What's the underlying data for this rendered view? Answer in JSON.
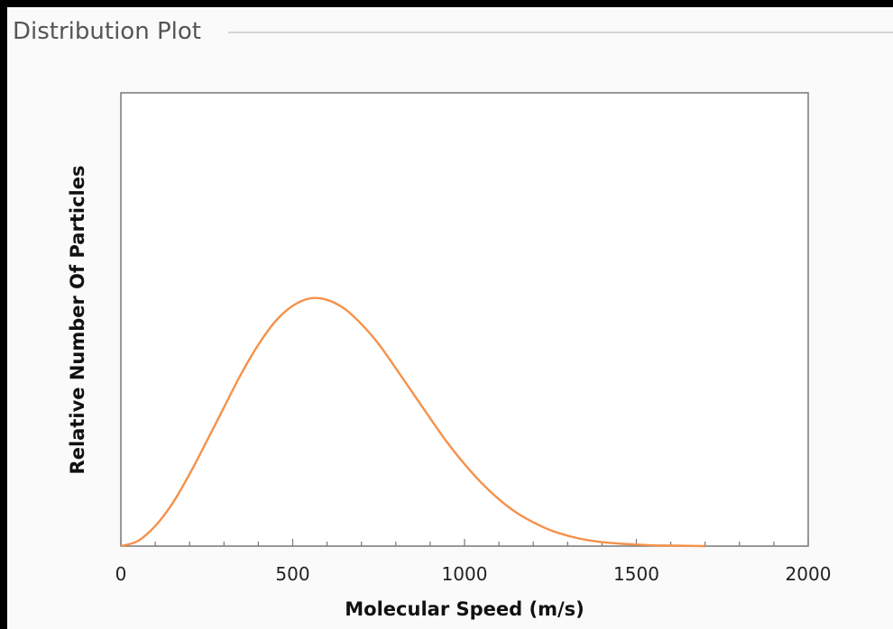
{
  "panel": {
    "title": "Distribution Plot"
  },
  "chart_data": {
    "type": "line",
    "title": "",
    "xlabel": "Molecular Speed (m/s)",
    "ylabel": "Relative Number Of Particles",
    "xlim": [
      0,
      2000
    ],
    "ylim": [
      0,
      1.83
    ],
    "x_ticks": [
      "0",
      "500",
      "1000",
      "1500",
      "2000"
    ],
    "x_major_step": 500,
    "x_minor_step": 100,
    "y_tick_labels_shown": false,
    "grid": false,
    "legend": "none",
    "series": [
      {
        "color": "#f5914a",
        "x": [
          0,
          50,
          100,
          150,
          200,
          250,
          300,
          350,
          400,
          450,
          500,
          550,
          600,
          650,
          700,
          750,
          800,
          850,
          900,
          950,
          1000,
          1050,
          1100,
          1150,
          1200,
          1250,
          1300,
          1350,
          1400,
          1450,
          1500,
          1550,
          1600,
          1650,
          1700
        ],
        "y": [
          0.0,
          0.021,
          0.081,
          0.172,
          0.291,
          0.424,
          0.56,
          0.695,
          0.813,
          0.908,
          0.97,
          1.0,
          0.994,
          0.959,
          0.896,
          0.816,
          0.718,
          0.617,
          0.516,
          0.418,
          0.331,
          0.254,
          0.189,
          0.136,
          0.096,
          0.064,
          0.042,
          0.026,
          0.016,
          0.01,
          0.006,
          0.003,
          0.002,
          0.001,
          0.0
        ]
      }
    ]
  }
}
